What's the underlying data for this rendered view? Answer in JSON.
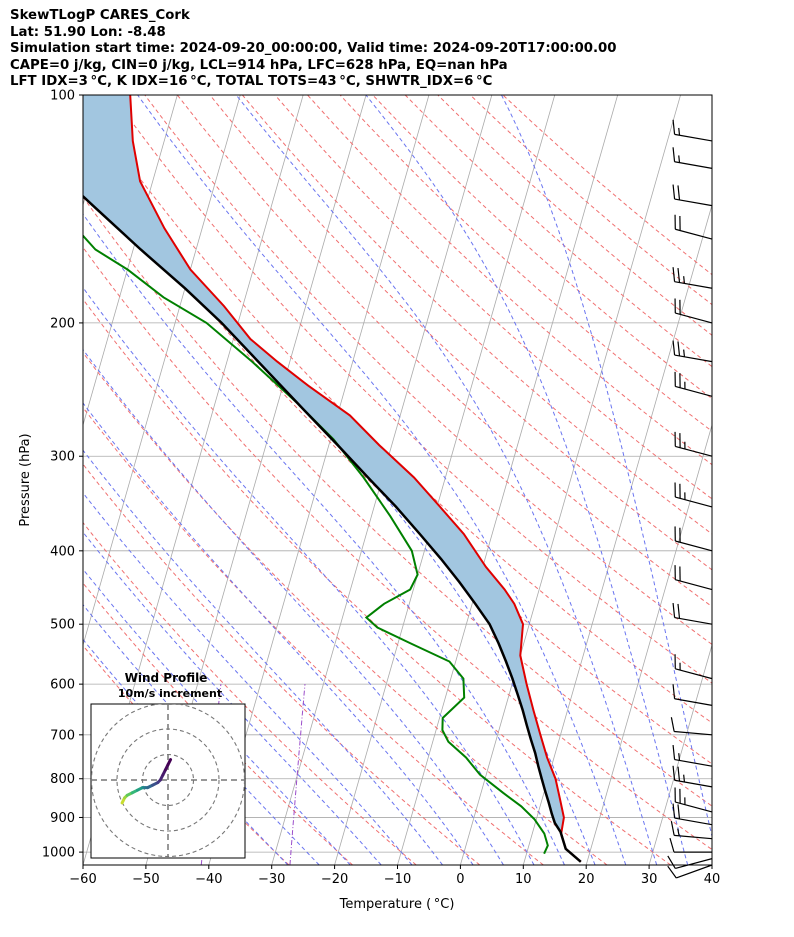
{
  "header": {
    "title": "SkewTLogP CARES_Cork",
    "latlon": "Lat: 51.90   Lon: -8.48",
    "times": "Simulation start time: 2024-09-20_00:00:00, Valid time: 2024-09-20T17:00:00.00",
    "params1": "CAPE=0 j/kg, CIN=0 j/kg, LCL=914 hPa, LFC=628 hPa, EQ=nan hPa",
    "params2": "LFT IDX=3 °C, K IDX=16 °C, TOTAL TOTS=43 °C, SHWTR_IDX=6 °C"
  },
  "colors": {
    "temperature": "#e00000",
    "dewpoint": "#008000",
    "parcel": "#000000",
    "cape_fill": "#a2c6e0",
    "dry_adiabat": "#f07070",
    "moist_adiabat": "#6a75f0",
    "mixing_ratio": "#9b4dca",
    "isotherm": "#aaaaaa"
  },
  "chart_data": {
    "type": "skew-t log-p",
    "xlabel": "Temperature ( °C)",
    "ylabel": "Pressure (hPa)",
    "xlim": [
      -60,
      40
    ],
    "ylim": [
      1040,
      100
    ],
    "x_ticks": [
      -60,
      -50,
      -40,
      -30,
      -20,
      -10,
      0,
      10,
      20,
      30,
      40
    ],
    "x_tick_labels": [
      "−60",
      "−50",
      "−40",
      "−30",
      "−20",
      "−10",
      "0",
      "10",
      "20",
      "30",
      "40"
    ],
    "y_ticks": [
      1000,
      900,
      800,
      700,
      600,
      500,
      400,
      300,
      200,
      100
    ],
    "y_tick_labels": [
      "1000",
      "900",
      "800",
      "700",
      "600",
      "500",
      "400",
      "300",
      "200",
      "100"
    ],
    "series": [
      {
        "name": "Temperature",
        "color": "#e00000",
        "points": [
          [
            19.0,
            1030
          ],
          [
            16.0,
            990
          ],
          [
            14.6,
            945
          ],
          [
            14.3,
            900
          ],
          [
            12.8,
            850
          ],
          [
            11.2,
            800
          ],
          [
            8.9,
            750
          ],
          [
            6.8,
            700
          ],
          [
            4.6,
            650
          ],
          [
            2.3,
            600
          ],
          [
            0.0,
            550
          ],
          [
            -1.0,
            500
          ],
          [
            -3.3,
            470
          ],
          [
            -5.5,
            450
          ],
          [
            -9.5,
            420
          ],
          [
            -14.5,
            380
          ],
          [
            -19.5,
            350
          ],
          [
            -25.0,
            320
          ],
          [
            -32.0,
            290
          ],
          [
            -38.0,
            265
          ],
          [
            -46.0,
            242
          ],
          [
            -52.0,
            225
          ],
          [
            -57.3,
            210
          ],
          [
            -63.0,
            190
          ],
          [
            -70.0,
            170
          ],
          [
            -76.0,
            150
          ],
          [
            -82.0,
            130
          ],
          [
            -85.0,
            115
          ],
          [
            -87.5,
            100
          ]
        ]
      },
      {
        "name": "Dewpoint",
        "color": "#008000",
        "points": [
          [
            12.8,
            1005
          ],
          [
            13.0,
            980
          ],
          [
            11.9,
            945
          ],
          [
            9.7,
            905
          ],
          [
            7.0,
            870
          ],
          [
            3.5,
            835
          ],
          [
            -1.0,
            790
          ],
          [
            -4.0,
            750
          ],
          [
            -7.5,
            715
          ],
          [
            -9.0,
            690
          ],
          [
            -9.5,
            665
          ],
          [
            -7.0,
            625
          ],
          [
            -8.0,
            590
          ],
          [
            -11.0,
            560
          ],
          [
            -18.0,
            530
          ],
          [
            -24.0,
            505
          ],
          [
            -26.2,
            490
          ],
          [
            -24.0,
            470
          ],
          [
            -20.5,
            450
          ],
          [
            -20.0,
            430
          ],
          [
            -22.0,
            400
          ],
          [
            -27.0,
            360
          ],
          [
            -33.0,
            320
          ],
          [
            -39.5,
            285
          ],
          [
            -47.0,
            255
          ],
          [
            -56.0,
            225
          ],
          [
            -65.0,
            200
          ],
          [
            -73.0,
            185
          ],
          [
            -80.0,
            170
          ],
          [
            -86.0,
            160
          ],
          [
            -90.0,
            150
          ],
          [
            -93.0,
            142
          ],
          [
            -95.0,
            135
          ],
          [
            -95.0,
            125
          ],
          [
            -97.0,
            115
          ],
          [
            -99.0,
            100
          ]
        ]
      },
      {
        "name": "Parcel",
        "color": "#000000",
        "points": [
          [
            19.0,
            1030
          ],
          [
            16.0,
            990
          ],
          [
            14.4,
            940
          ],
          [
            13.1,
            915
          ],
          [
            12.2,
            890
          ],
          [
            11.2,
            860
          ],
          [
            10.1,
            830
          ],
          [
            9.0,
            800
          ],
          [
            7.9,
            770
          ],
          [
            6.8,
            740
          ],
          [
            5.5,
            710
          ],
          [
            4.2,
            680
          ],
          [
            2.9,
            650
          ],
          [
            1.4,
            620
          ],
          [
            -0.2,
            590
          ],
          [
            -2.0,
            560
          ],
          [
            -4.0,
            530
          ],
          [
            -6.3,
            500
          ],
          [
            -9.5,
            470
          ],
          [
            -13.0,
            440
          ],
          [
            -17.0,
            410
          ],
          [
            -21.5,
            380
          ],
          [
            -26.5,
            350
          ],
          [
            -32.3,
            320
          ],
          [
            -38.6,
            290
          ],
          [
            -45.7,
            260
          ],
          [
            -53.6,
            230
          ],
          [
            -62.6,
            200
          ],
          [
            -70.0,
            180
          ],
          [
            -78.8,
            160
          ],
          [
            -88.4,
            140
          ],
          [
            -99.3,
            120
          ],
          [
            -112.2,
            100
          ]
        ]
      }
    ],
    "shaded_region": "CAPE (between parcel and temperature)",
    "wind_barbs": {
      "pressures": [
        1040,
        1020,
        1000,
        960,
        920,
        885,
        820,
        770,
        700,
        640,
        590,
        500,
        450,
        400,
        350,
        300,
        250,
        225,
        200,
        180,
        155,
        140,
        125,
        115
      ],
      "speeds_kt": [
        10,
        10,
        10,
        15,
        20,
        25,
        25,
        15,
        10,
        10,
        15,
        20,
        20,
        20,
        25,
        25,
        25,
        25,
        20,
        25,
        20,
        20,
        15,
        15
      ],
      "directions_deg": [
        250,
        255,
        270,
        275,
        280,
        285,
        280,
        280,
        275,
        280,
        285,
        280,
        285,
        285,
        285,
        285,
        285,
        280,
        285,
        280,
        285,
        280,
        280,
        280
      ]
    },
    "inset": {
      "title": "Wind Profile",
      "subtitle": "10m/s increment",
      "rings_ms": [
        10,
        20,
        30
      ],
      "hodograph_uv": [
        [
          -18,
          -9
        ],
        [
          -17,
          -7
        ],
        [
          -16,
          -6
        ],
        [
          -14,
          -5
        ],
        [
          -12,
          -4
        ],
        [
          -10,
          -3
        ],
        [
          -9,
          -3
        ],
        [
          -8,
          -3
        ],
        [
          -6,
          -2
        ],
        [
          -4,
          -1
        ],
        [
          -3,
          0
        ],
        [
          -2,
          2
        ],
        [
          -1,
          4
        ],
        [
          0,
          6
        ],
        [
          1,
          8
        ]
      ]
    }
  }
}
